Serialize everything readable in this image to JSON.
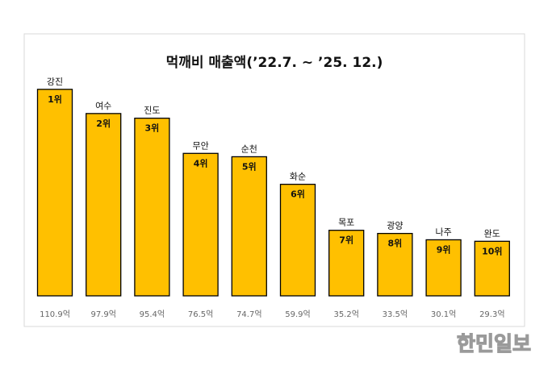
{
  "chart_data": {
    "type": "bar",
    "title": "먹깨비 매출액(’22.7. ~ ’25. 12.)",
    "categories": [
      "강진",
      "여수",
      "진도",
      "무안",
      "순천",
      "화순",
      "목포",
      "광양",
      "나주",
      "완도"
    ],
    "values": [
      110.9,
      97.9,
      95.4,
      76.5,
      74.7,
      59.9,
      35.2,
      33.5,
      30.1,
      29.3
    ],
    "value_labels": [
      "110.9억",
      "97.9억",
      "95.4억",
      "76.5억",
      "74.7억",
      "59.9억",
      "35.2억",
      "33.5억",
      "30.1억",
      "29.3억"
    ],
    "ranks": [
      "1위",
      "2위",
      "3위",
      "4위",
      "5위",
      "6위",
      "7위",
      "8위",
      "9위",
      "10위"
    ],
    "color": "#ffc000"
  },
  "watermark": "한민일보"
}
